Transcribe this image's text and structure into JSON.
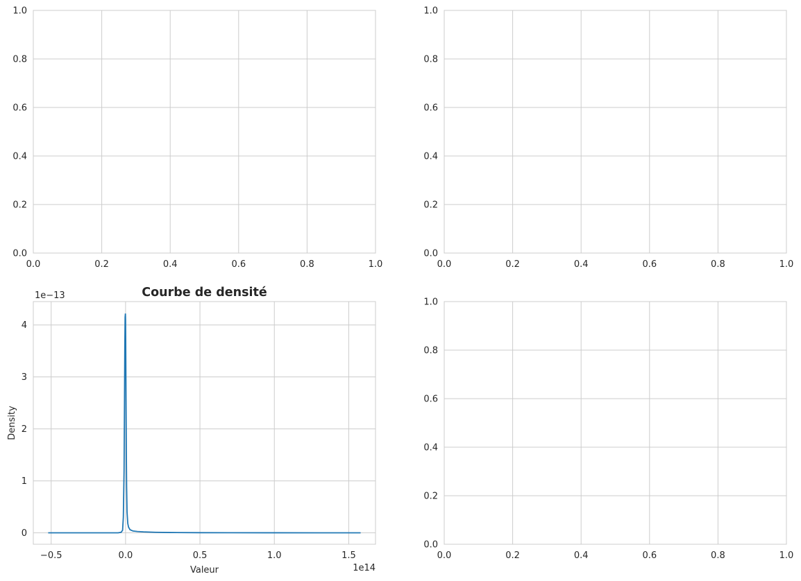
{
  "chart_data": [
    {
      "type": "line",
      "panel": "top-left",
      "title": "",
      "xlabel": "",
      "ylabel": "",
      "xlim": [
        0,
        1
      ],
      "ylim": [
        0,
        1
      ],
      "xticks": [
        "0.0",
        "0.2",
        "0.4",
        "0.6",
        "0.8",
        "1.0"
      ],
      "yticks": [
        "0.0",
        "0.2",
        "0.4",
        "0.6",
        "0.8",
        "1.0"
      ],
      "grid": true,
      "series": []
    },
    {
      "type": "line",
      "panel": "top-right",
      "title": "",
      "xlabel": "",
      "ylabel": "",
      "xlim": [
        0,
        1
      ],
      "ylim": [
        0,
        1
      ],
      "xticks": [
        "0.0",
        "0.2",
        "0.4",
        "0.6",
        "0.8",
        "1.0"
      ],
      "yticks": [
        "0.0",
        "0.2",
        "0.4",
        "0.6",
        "0.8",
        "1.0"
      ],
      "grid": true,
      "series": []
    },
    {
      "type": "line",
      "panel": "bottom-left",
      "title": "Courbe de densité",
      "xlabel": "Valeur",
      "ylabel": "Density",
      "x_offset_label": "1e14",
      "y_offset_label": "1e−13",
      "xlim": [
        -0.62,
        1.68
      ],
      "ylim": [
        -0.22,
        4.45
      ],
      "xticks": [
        "−0.5",
        "0.0",
        "0.5",
        "1.0",
        "1.5"
      ],
      "xtick_values": [
        -0.5,
        0.0,
        0.5,
        1.0,
        1.5
      ],
      "yticks": [
        "0",
        "1",
        "2",
        "3",
        "4"
      ],
      "ytick_values": [
        0,
        1,
        2,
        3,
        4
      ],
      "grid": true,
      "line_color": "#1f77b4",
      "series": [
        {
          "x": [
            -0.52,
            -0.4,
            -0.3,
            -0.2,
            -0.1,
            -0.05,
            -0.03,
            -0.02,
            -0.015,
            -0.01,
            -0.007,
            -0.005,
            -0.003,
            -0.001,
            0.0,
            0.001,
            0.003,
            0.005,
            0.007,
            0.01,
            0.015,
            0.02,
            0.03,
            0.05,
            0.08,
            0.12,
            0.2,
            0.3,
            0.5,
            0.7,
            1.0,
            1.3,
            1.58
          ],
          "y": [
            0.0,
            0.0,
            0.0,
            0.0,
            0.0,
            0.0,
            0.01,
            0.05,
            0.3,
            1.2,
            2.6,
            3.6,
            4.15,
            4.22,
            4.1,
            3.7,
            2.6,
            1.6,
            0.9,
            0.4,
            0.18,
            0.11,
            0.06,
            0.035,
            0.025,
            0.018,
            0.01,
            0.006,
            0.003,
            0.002,
            0.001,
            0.0,
            0.0
          ]
        }
      ]
    },
    {
      "type": "line",
      "panel": "bottom-right",
      "title": "",
      "xlabel": "",
      "ylabel": "",
      "xlim": [
        0,
        1
      ],
      "ylim": [
        0,
        1
      ],
      "xticks": [
        "0.0",
        "0.2",
        "0.4",
        "0.6",
        "0.8",
        "1.0"
      ],
      "yticks": [
        "0.0",
        "0.2",
        "0.4",
        "0.6",
        "0.8",
        "1.0"
      ],
      "grid": true,
      "series": []
    }
  ]
}
